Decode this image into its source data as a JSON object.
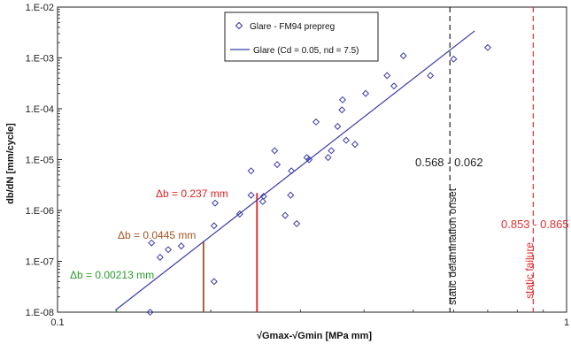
{
  "chart_data": {
    "type": "scatter",
    "title": "",
    "xlabel": "√Gmax-√Gmin [MPa mm]",
    "ylabel": "db/dN [mm/cycle]",
    "x_scale": "log",
    "y_scale": "log",
    "xlim": [
      0.1,
      1
    ],
    "ylim": [
      1e-08,
      0.01
    ],
    "x_ticks": [
      {
        "value": 0.1,
        "label": "0.1"
      },
      {
        "value": 1,
        "label": "1"
      }
    ],
    "y_ticks": [
      {
        "value": 1e-08,
        "label": "1.E-08"
      },
      {
        "value": 1e-07,
        "label": "1.E-07"
      },
      {
        "value": 1e-06,
        "label": "1.E-06"
      },
      {
        "value": 1e-05,
        "label": "1.E-05"
      },
      {
        "value": 0.0001,
        "label": "1.E-04"
      },
      {
        "value": 0.001,
        "label": "1.E-03"
      },
      {
        "value": 0.01,
        "label": "1.E-02"
      }
    ],
    "grid": false,
    "legend": {
      "position": "top-center",
      "entries": [
        {
          "label": "Glare - FM94 prepreg",
          "marker": "diamond",
          "color": "#3a3aa8"
        },
        {
          "label": "Glare (Cd = 0.05, nd = 7.5)",
          "marker": "line",
          "color": "#3a3aa8"
        }
      ]
    },
    "series": [
      {
        "name": "Glare - FM94 prepreg",
        "type": "scatter",
        "color": "#3a3aa8",
        "points": [
          [
            0.152,
            1e-08
          ],
          [
            0.153,
            2.3e-07
          ],
          [
            0.159,
            1.2e-07
          ],
          [
            0.165,
            1.7e-07
          ],
          [
            0.175,
            2e-07
          ],
          [
            0.203,
            4e-08
          ],
          [
            0.203,
            5e-07
          ],
          [
            0.204,
            1.4e-06
          ],
          [
            0.228,
            8.5e-07
          ],
          [
            0.24,
            2e-06
          ],
          [
            0.24,
            6e-06
          ],
          [
            0.253,
            1.5e-06
          ],
          [
            0.254,
            1.9e-06
          ],
          [
            0.267,
            1.5e-05
          ],
          [
            0.27,
            8e-06
          ],
          [
            0.28,
            8e-07
          ],
          [
            0.287,
            2e-06
          ],
          [
            0.288,
            6e-06
          ],
          [
            0.295,
            5.5e-07
          ],
          [
            0.309,
            1.1e-05
          ],
          [
            0.312,
            1e-05
          ],
          [
            0.322,
            5.5e-05
          ],
          [
            0.34,
            1.1e-05
          ],
          [
            0.345,
            1.5e-05
          ],
          [
            0.355,
            4.5e-05
          ],
          [
            0.362,
            9.5e-05
          ],
          [
            0.363,
            0.00015
          ],
          [
            0.369,
            2.4e-05
          ],
          [
            0.384,
            2e-05
          ],
          [
            0.403,
            0.0002
          ],
          [
            0.444,
            0.00045
          ],
          [
            0.458,
            0.00028
          ],
          [
            0.478,
            0.0011
          ],
          [
            0.54,
            0.00045
          ],
          [
            0.6,
            0.00095
          ],
          [
            0.7,
            0.0016
          ]
        ]
      },
      {
        "name": "Glare (Cd = 0.05, nd = 7.5)",
        "type": "line",
        "color": "#3a3aa8",
        "points": [
          [
            0.13,
            1.1e-08
          ],
          [
            0.66,
            0.0034
          ]
        ]
      }
    ],
    "reference_lines": [
      {
        "orientation": "vertical",
        "x": 0.59,
        "style": "dashed",
        "color": "#222222"
      },
      {
        "orientation": "vertical",
        "x": 0.86,
        "style": "dashed",
        "color": "#e03030"
      }
    ],
    "delta_b_markers": [
      {
        "label": "Δb = 0.00213 mm",
        "x": 0.1305,
        "y_top": 1.1e-08,
        "color": "#2a9a2a"
      },
      {
        "label": "Δb = 0.0445 mm",
        "x": 0.1935,
        "y_top": 2.5e-07,
        "color": "#a4541f"
      },
      {
        "label": "Δb = 0.237 mm",
        "x": 0.2465,
        "y_top": 2.2e-06,
        "color": "#e02020"
      }
    ],
    "annotations": [
      {
        "text": "0.568 - 0.062",
        "color": "#222222"
      },
      {
        "text": "static delamination onset",
        "color": "#222222"
      },
      {
        "text": "0.853 - 0.865",
        "color": "#e03030"
      },
      {
        "text": "static failure",
        "color": "#e03030"
      }
    ]
  }
}
